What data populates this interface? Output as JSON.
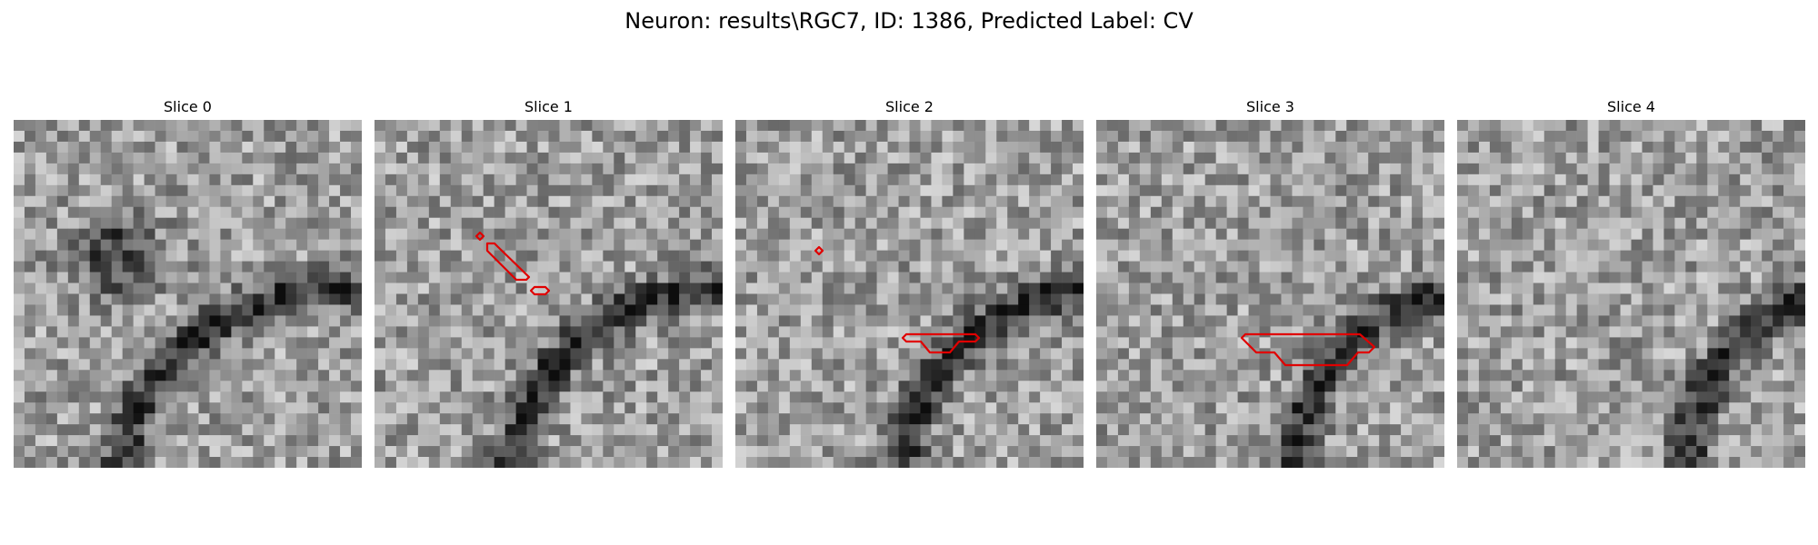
{
  "figure": {
    "title": "Neuron: results\\RGC7, ID: 1386, Predicted Label: CV",
    "contour_color": "#e00000"
  },
  "panels": [
    {
      "title": "Slice 0",
      "seed": 11,
      "contours": []
    },
    {
      "title": "Slice 1",
      "seed": 23,
      "contours": [
        "M116,124 L120,128 L116,132 L112,128 Z",
        "M124,136 L124,144 L156,176 L167,176 L170,173 L136,140 L132,136 Z",
        "M176,184 L172,188 L176,192 L188,192 L192,188 L188,184 Z"
      ]
    },
    {
      "title": "Slice 2",
      "seed": 37,
      "contours": [
        "M92,140 L96,144 L92,148 L88,144 Z",
        "M188,236 L184,240 L188,244 L204,244 L214,256 L236,256 L246,244 L264,244 L268,240 L264,236 Z"
      ]
    },
    {
      "title": "Slice 3",
      "seed": 53,
      "contours": [
        "M164,236 L160,240 L164,244 L176,256 L196,256 L208,270 L276,270 L288,256 L300,256 L306,250 L290,236 Z"
      ]
    },
    {
      "title": "Slice 4",
      "seed": 71,
      "contours": []
    }
  ]
}
